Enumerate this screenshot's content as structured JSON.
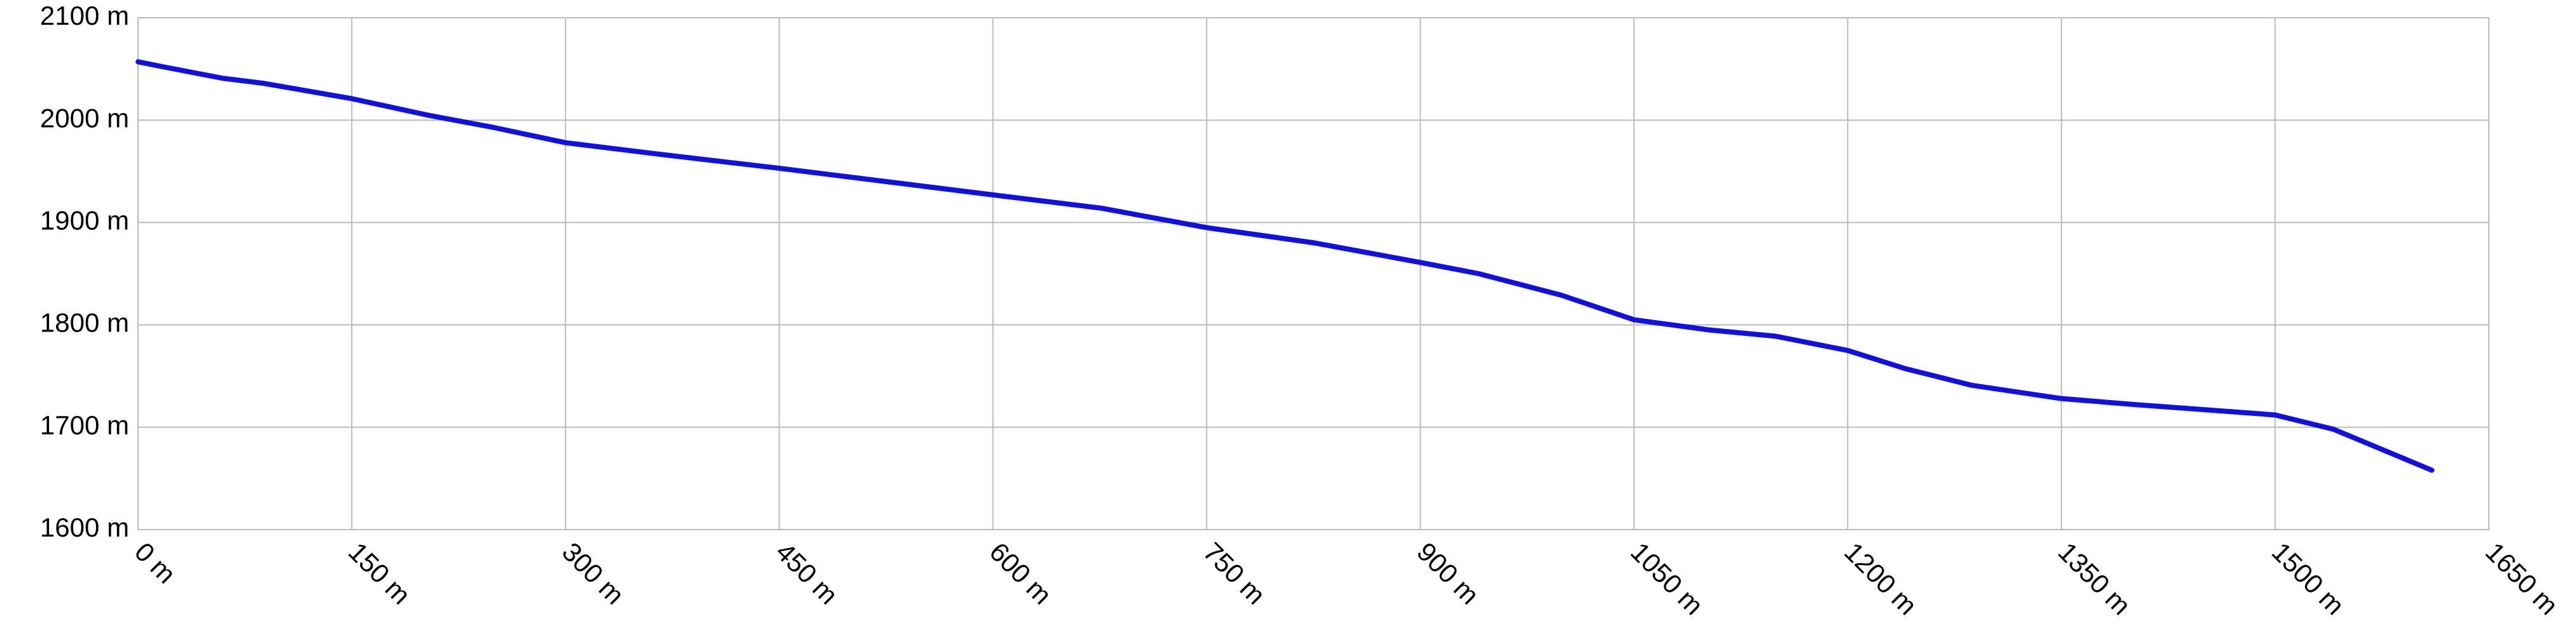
{
  "chart_data": {
    "type": "line",
    "x": [
      0,
      18,
      59,
      88,
      150,
      203,
      249,
      300,
      364,
      450,
      600,
      676,
      750,
      826,
      900,
      941,
      999,
      1050,
      1103,
      1149,
      1200,
      1241,
      1287,
      1350,
      1403,
      1500,
      1541,
      1610
    ],
    "series": [
      {
        "color": "#1010e6",
        "values": [
          2057,
          2052,
          2041,
          2036,
          2021,
          2005,
          1993,
          1978,
          1967,
          1953,
          1927,
          1914,
          1895,
          1880,
          1861,
          1850,
          1829,
          1805,
          1795,
          1789,
          1775,
          1757,
          1741,
          1728,
          1722,
          1712,
          1698,
          1658
        ]
      }
    ],
    "xlim": [
      0,
      1650
    ],
    "xticks": [
      {
        "value": 0,
        "label": "0 m"
      },
      {
        "value": 150,
        "label": "150 m"
      },
      {
        "value": 300,
        "label": "300 m"
      },
      {
        "value": 450,
        "label": "450 m"
      },
      {
        "value": 600,
        "label": "600 m"
      },
      {
        "value": 750,
        "label": "750 m"
      },
      {
        "value": 900,
        "label": "900 m"
      },
      {
        "value": 1050,
        "label": "1050 m"
      },
      {
        "value": 1200,
        "label": "1200 m"
      },
      {
        "value": 1350,
        "label": "1350 m"
      },
      {
        "value": 1500,
        "label": "1500 m"
      },
      {
        "value": 1650,
        "label": "1650 m"
      }
    ],
    "ylim": [
      1600,
      2100
    ],
    "yticks": [
      {
        "value": 1600,
        "label": "1600 m"
      },
      {
        "value": 1700,
        "label": "1700 m"
      },
      {
        "value": 1800,
        "label": "1800 m"
      },
      {
        "value": 1900,
        "label": "1900 m"
      },
      {
        "value": 2000,
        "label": "2000 m"
      },
      {
        "value": 2100,
        "label": "2100 m"
      }
    ],
    "grid": true
  }
}
